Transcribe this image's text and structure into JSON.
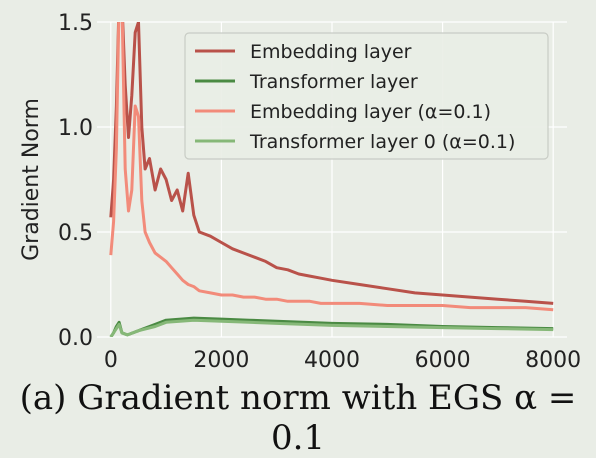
{
  "caption": "(a) Gradient norm with EGS α = 0.1",
  "chart_data": {
    "type": "line",
    "title": "",
    "xlabel": "",
    "ylabel": "Gradient Norm",
    "xlim": [
      -250,
      8250
    ],
    "ylim": [
      0,
      1.5
    ],
    "xticks": [
      0,
      2000,
      4000,
      6000,
      8000
    ],
    "yticks": [
      0.0,
      0.5,
      1.0,
      1.5
    ],
    "xtick_labels": [
      "0",
      "2000",
      "4000",
      "6000",
      "8000"
    ],
    "ytick_labels": [
      "0.0",
      "0.5",
      "1.0",
      "1.5"
    ],
    "grid": true,
    "legend_position": "top-right",
    "series": [
      {
        "name": "Embedding layer",
        "color": "#b9524a",
        "x": [
          0,
          50,
          100,
          150,
          200,
          260,
          320,
          380,
          440,
          500,
          560,
          620,
          700,
          800,
          900,
          1000,
          1100,
          1200,
          1300,
          1400,
          1500,
          1600,
          1800,
          2000,
          2200,
          2400,
          2600,
          2800,
          3000,
          3200,
          3400,
          3600,
          3800,
          4000,
          4500,
          5000,
          5500,
          6000,
          6500,
          7000,
          7500,
          8000
        ],
        "y": [
          0.57,
          0.75,
          1.1,
          1.6,
          1.6,
          1.2,
          0.95,
          1.15,
          1.45,
          1.5,
          1.0,
          0.8,
          0.85,
          0.7,
          0.8,
          0.75,
          0.65,
          0.7,
          0.6,
          0.78,
          0.58,
          0.5,
          0.48,
          0.45,
          0.42,
          0.4,
          0.38,
          0.36,
          0.33,
          0.32,
          0.3,
          0.29,
          0.28,
          0.27,
          0.25,
          0.23,
          0.21,
          0.2,
          0.19,
          0.18,
          0.17,
          0.16
        ]
      },
      {
        "name": "Transformer layer",
        "color": "#4a8a43",
        "x": [
          0,
          50,
          100,
          150,
          200,
          300,
          500,
          800,
          1000,
          1500,
          2000,
          2500,
          3000,
          4000,
          5000,
          6000,
          7000,
          8000
        ],
        "y": [
          0.0,
          0.02,
          0.05,
          0.07,
          0.02,
          0.01,
          0.03,
          0.06,
          0.08,
          0.09,
          0.085,
          0.08,
          0.075,
          0.065,
          0.06,
          0.05,
          0.045,
          0.04
        ]
      },
      {
        "name": "Embedding layer (α=0.1)",
        "color": "#f28b7a",
        "x": [
          0,
          50,
          100,
          150,
          200,
          260,
          320,
          380,
          440,
          500,
          560,
          620,
          700,
          800,
          900,
          1000,
          1100,
          1200,
          1300,
          1400,
          1500,
          1600,
          1800,
          2000,
          2200,
          2400,
          2600,
          2800,
          3000,
          3200,
          3400,
          3600,
          3800,
          4000,
          4500,
          5000,
          5500,
          6000,
          6500,
          7000,
          7500,
          8000
        ],
        "y": [
          0.39,
          0.55,
          0.9,
          1.6,
          1.6,
          0.8,
          0.6,
          0.7,
          1.1,
          1.05,
          0.65,
          0.5,
          0.45,
          0.4,
          0.38,
          0.36,
          0.33,
          0.3,
          0.27,
          0.25,
          0.24,
          0.22,
          0.21,
          0.2,
          0.2,
          0.19,
          0.19,
          0.18,
          0.18,
          0.17,
          0.17,
          0.17,
          0.16,
          0.16,
          0.16,
          0.15,
          0.15,
          0.15,
          0.14,
          0.14,
          0.14,
          0.13
        ]
      },
      {
        "name": "Transformer layer 0 (α=0.1)",
        "color": "#86b878",
        "x": [
          0,
          50,
          100,
          150,
          200,
          300,
          500,
          800,
          1000,
          1500,
          2000,
          2500,
          3000,
          4000,
          5000,
          6000,
          7000,
          8000
        ],
        "y": [
          0.0,
          0.02,
          0.04,
          0.06,
          0.02,
          0.01,
          0.03,
          0.05,
          0.07,
          0.08,
          0.075,
          0.07,
          0.065,
          0.055,
          0.05,
          0.045,
          0.04,
          0.035
        ]
      }
    ]
  }
}
